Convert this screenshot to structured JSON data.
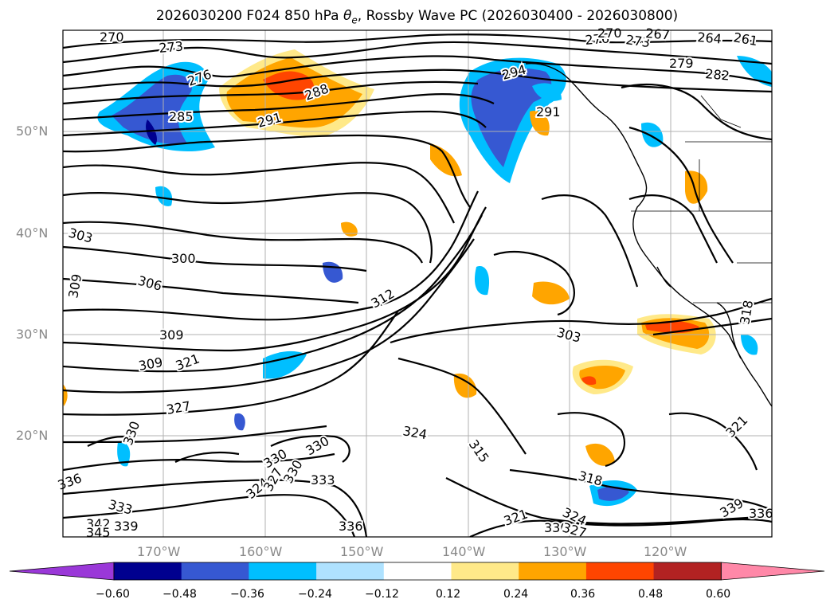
{
  "title": "2026030200 F024 850 hPa θe, Rossby Wave PC (2026030400 - 2026030800)",
  "lat_labels": [
    "50°N",
    "40°N",
    "30°N",
    "20°N"
  ],
  "lon_labels": [
    "170°W",
    "160°W",
    "150°W",
    "140°W",
    "130°W",
    "120°W"
  ],
  "colorbar": {
    "colors": [
      "#9a38d8",
      "#00008f",
      "#3658d2",
      "#00bfff",
      "#afe2ff",
      "#ffffff",
      "#ffe989",
      "#ffa500",
      "#ff4500",
      "#b22222",
      "#ff88a8"
    ],
    "ticks": [
      "−0.60",
      "−0.48",
      "−0.36",
      "−0.24",
      "−0.12",
      "0.12",
      "0.24",
      "0.36",
      "0.48",
      "0.60"
    ]
  },
  "contour_labels": [
    "270",
    "273",
    "276",
    "273",
    "270",
    "267",
    "264",
    "261",
    "279",
    "282",
    "276",
    "288",
    "285",
    "291",
    "294",
    "291",
    "303",
    "300",
    "306",
    "309",
    "312",
    "303",
    "309",
    "309",
    "321",
    "318",
    "327",
    "324",
    "315",
    "321",
    "330",
    "330",
    "330",
    "336",
    "333",
    "324",
    "327",
    "330",
    "333",
    "339",
    "318",
    "342",
    "345",
    "336",
    "321",
    "324",
    "330",
    "327",
    "339",
    "336"
  ],
  "colors": {
    "map_border": "#000000",
    "grid": "#b0b0b0",
    "contour": "#000000"
  }
}
